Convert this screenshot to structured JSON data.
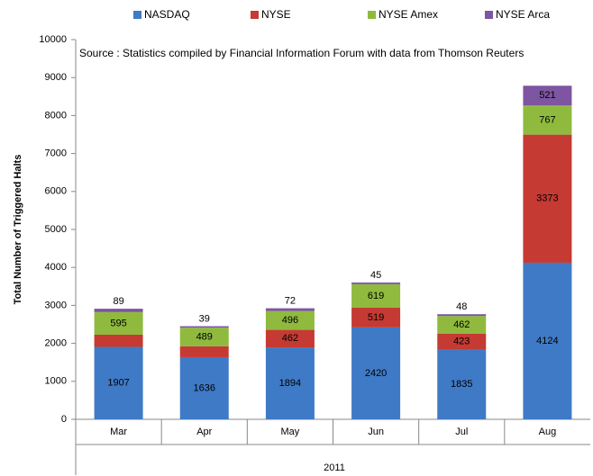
{
  "chart_data": {
    "type": "stacked_bar",
    "annotation": "Source : Statistics compiled by  Financial Information Forum with data from Thomson Reuters",
    "ylabel": "Total Number of Triggered Halts",
    "xlabel": "2011",
    "categories": [
      "Mar",
      "Apr",
      "May",
      "Jun",
      "Jul",
      "Aug"
    ],
    "series": [
      {
        "name": "NASDAQ",
        "color": "#3f7ac6",
        "values": [
          1907,
          1636,
          1894,
          2420,
          1835,
          4124
        ]
      },
      {
        "name": "NYSE",
        "color": "#c53a32",
        "values": [
          321,
          288,
          462,
          519,
          423,
          3373
        ]
      },
      {
        "name": "NYSE Amex",
        "color": "#8fba3e",
        "values": [
          595,
          489,
          496,
          619,
          462,
          767
        ]
      },
      {
        "name": "NYSE Arca",
        "color": "#7d55a0",
        "values": [
          89,
          39,
          72,
          45,
          48,
          521
        ]
      }
    ],
    "ylim": [
      0,
      10000
    ],
    "yticks": [
      0,
      1000,
      2000,
      3000,
      4000,
      5000,
      6000,
      7000,
      8000,
      9000,
      10000
    ],
    "grid": false
  }
}
